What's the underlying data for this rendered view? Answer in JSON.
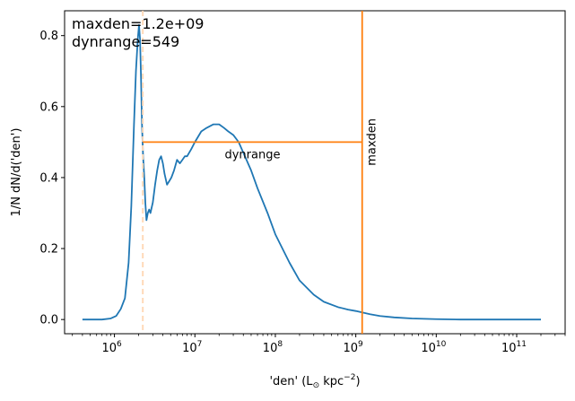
{
  "chart_data": {
    "type": "line",
    "title": "",
    "xlabel_main": "'den' (L",
    "xlabel_sun": "⊙",
    "xlabel_unit": " kpc",
    "xlabel_exp": "−2",
    "xlabel_close": ")",
    "ylabel": "1/N dN/d('den')",
    "xscale": "log",
    "xlim": [
      240000.0,
      400000000000.0
    ],
    "ylim": [
      -0.04,
      0.87
    ],
    "grid": false,
    "yticks": [
      {
        "value": 0.0,
        "label": "0.0"
      },
      {
        "value": 0.2,
        "label": "0.2"
      },
      {
        "value": 0.4,
        "label": "0.4"
      },
      {
        "value": 0.6,
        "label": "0.6"
      },
      {
        "value": 0.8,
        "label": "0.8"
      }
    ],
    "xticks": [
      {
        "value": 1000000.0,
        "base": "10",
        "exp": "6"
      },
      {
        "value": 10000000.0,
        "base": "10",
        "exp": "7"
      },
      {
        "value": 100000000.0,
        "base": "10",
        "exp": "8"
      },
      {
        "value": 1000000000.0,
        "base": "10",
        "exp": "9"
      },
      {
        "value": 10000000000.0,
        "base": "10",
        "exp": "10"
      },
      {
        "value": 100000000000.0,
        "base": "10",
        "exp": "11"
      }
    ],
    "series": [
      {
        "color": "#1f77b4",
        "x": [
          400000.0,
          500000.0,
          700000.0,
          900000.0,
          1050000.0,
          1200000.0,
          1350000.0,
          1500000.0,
          1620000.0,
          1750000.0,
          1850000.0,
          1950000.0,
          2020000.0,
          2080000.0,
          2140000.0,
          2200000.0,
          2270000.0,
          2350000.0,
          2420000.0,
          2500000.0,
          2600000.0,
          2700000.0,
          2800000.0,
          3000000.0,
          3200000.0,
          3400000.0,
          3600000.0,
          3800000.0,
          4000000.0,
          4200000.0,
          4500000.0,
          4800000.0,
          5100000.0,
          5500000.0,
          6000000.0,
          6500000.0,
          7000000.0,
          7500000.0,
          8000000.0,
          9000000.0,
          10000000.0,
          12000000.0,
          14000000.0,
          17000000.0,
          20000000.0,
          23000000.0,
          26000000.0,
          30000000.0,
          35000000.0,
          40000000.0,
          50000000.0,
          60000000.0,
          80000000.0,
          100000000.0,
          150000000.0,
          200000000.0,
          300000000.0,
          400000000.0,
          600000000.0,
          800000000.0,
          1000000000.0,
          1500000000.0,
          2000000000.0,
          3000000000.0,
          5000000000.0,
          10000000000.0,
          20000000000.0,
          50000000000.0,
          100000000000.0,
          200000000000.0
        ],
        "y": [
          0.0,
          0.0,
          0.0,
          0.003,
          0.01,
          0.03,
          0.06,
          0.16,
          0.32,
          0.55,
          0.7,
          0.79,
          0.83,
          0.79,
          0.68,
          0.55,
          0.46,
          0.4,
          0.33,
          0.28,
          0.3,
          0.31,
          0.3,
          0.33,
          0.38,
          0.42,
          0.45,
          0.46,
          0.44,
          0.41,
          0.38,
          0.39,
          0.4,
          0.42,
          0.45,
          0.44,
          0.45,
          0.46,
          0.46,
          0.48,
          0.5,
          0.53,
          0.54,
          0.55,
          0.55,
          0.54,
          0.53,
          0.52,
          0.5,
          0.47,
          0.42,
          0.37,
          0.3,
          0.24,
          0.16,
          0.11,
          0.07,
          0.05,
          0.035,
          0.028,
          0.024,
          0.015,
          0.01,
          0.006,
          0.003,
          0.001,
          0.0,
          0.0,
          0.0,
          0.0
        ]
      }
    ],
    "markers": {
      "color": "#ff7f0e",
      "faint_color": "#ffd9b8",
      "floor_x": 2250000.0,
      "maxden_x": 1200000000.0,
      "dynrange_y": 0.5,
      "maxden_label": "maxden",
      "dynrange_label": "dynrange"
    },
    "annotations": [
      "maxden=1.2e+09",
      "dynrange=549"
    ]
  }
}
